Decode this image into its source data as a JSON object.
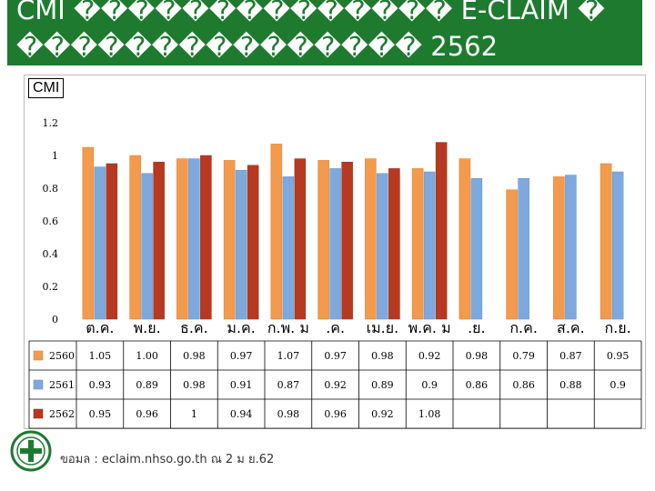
{
  "header": {
    "title_line1": "CMI �������������� E-CLAIM �",
    "title_line2": "��������������� 2562"
  },
  "chart_label": "CMI",
  "footer": {
    "source": "ขอมล  : eclaim.nhso.go.th   ณ 2 ม  ย.62"
  },
  "colors": {
    "header_bg": "#1e7a2f",
    "series_2560": "#f39a4c",
    "series_2561": "#7ea9de",
    "series_2562": "#b7391f"
  },
  "chart_data": {
    "type": "bar",
    "categories": [
      "ต.ค.",
      "พ.ย.",
      "ธ.ค.",
      "ม.ค.",
      "ก.พ.",
      "มี.ค.",
      "เม.ย.",
      "พ.ค.",
      "มิ.ย.",
      "ก.ค.",
      "ส.ค.",
      "ก.ย."
    ],
    "category_labels": [
      "ต.ค.",
      "พ.ย.",
      "ธ.ค.",
      "ม.ค.",
      "ก.พ.  ม",
      ".ค.",
      "เม.ย.",
      "พ.ค.  ม",
      ".ย.",
      "ก.ค.",
      "ส.ค.",
      "ก.ย."
    ],
    "ylim": [
      0,
      1.2
    ],
    "yticks": [
      "0",
      "0.2",
      "0.4",
      "0.6",
      "0.8",
      "1",
      "1.2"
    ],
    "grid": false,
    "legend": "table-below",
    "series": [
      {
        "name": "2560",
        "values": [
          1.05,
          1.0,
          0.98,
          0.97,
          1.07,
          0.97,
          0.98,
          0.92,
          0.98,
          0.79,
          0.87,
          0.95
        ],
        "labels": [
          "1.05",
          "1.00",
          "0.98",
          "0.97",
          "1.07",
          "0.97",
          "0.98",
          "0.92",
          "0.98",
          "0.79",
          "0.87",
          "0.95"
        ]
      },
      {
        "name": "2561",
        "values": [
          0.93,
          0.89,
          0.98,
          0.91,
          0.87,
          0.92,
          0.89,
          0.9,
          0.86,
          0.86,
          0.88,
          0.9
        ],
        "labels": [
          "0.93",
          "0.89",
          "0.98",
          "0.91",
          "0.87",
          "0.92",
          "0.89",
          "0.9",
          "0.86",
          "0.86",
          "0.88",
          "0.9"
        ]
      },
      {
        "name": "2562",
        "values": [
          0.95,
          0.96,
          1,
          0.94,
          0.98,
          0.96,
          0.92,
          1.08,
          null,
          null,
          null,
          null
        ],
        "labels": [
          "0.95",
          "0.96",
          "1",
          "0.94",
          "0.98",
          "0.96",
          "0.92",
          "1.08",
          "",
          "",
          "",
          ""
        ]
      }
    ]
  }
}
